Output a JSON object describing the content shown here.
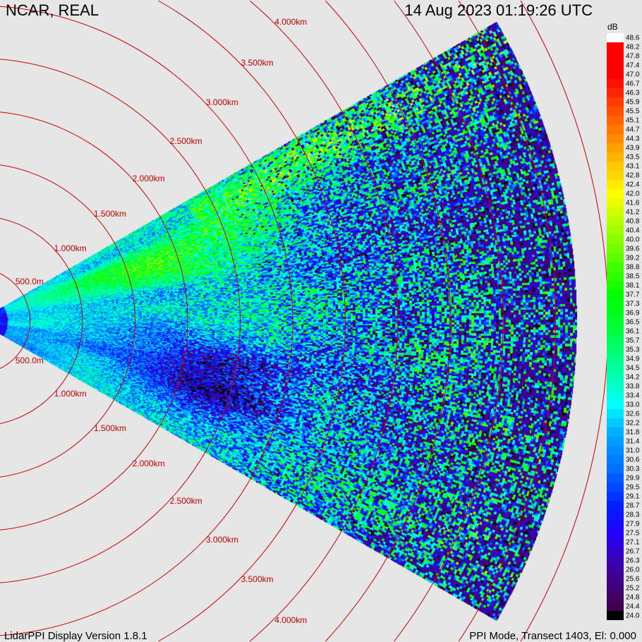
{
  "header": {
    "site": "NCAR, REAL",
    "datetime": "14 Aug 2023  01:19:26 UTC"
  },
  "footer": {
    "version": "LidarPPI Display Version 1.8.1",
    "mode": "PPI Mode, Transect 1403, El: 0.000"
  },
  "chart_data": {
    "type": "heatmap",
    "projection": "polar PPI sector",
    "sector_half_angle_deg": 30,
    "max_range_km": 5.7,
    "range_ring_spacing_km": 0.5,
    "range_ring_color": "#cc0000",
    "range_ring_labels": [
      "500.0m",
      "1.000km",
      "1.500km",
      "2.000km",
      "2.500km",
      "3.000km",
      "3.500km",
      "4.000km"
    ],
    "colorbar": {
      "unit": "dB",
      "labels": [
        "48.6",
        "48.2",
        "47.8",
        "47.4",
        "47.0",
        "46.7",
        "46.3",
        "45.9",
        "45.5",
        "45.1",
        "44.7",
        "44.3",
        "43.9",
        "43.5",
        "43.1",
        "42.8",
        "42.4",
        "42.0",
        "41.6",
        "41.2",
        "40.8",
        "40.4",
        "40.0",
        "39.6",
        "39.2",
        "38.8",
        "38.5",
        "38.1",
        "37.7",
        "37.3",
        "36.9",
        "36.5",
        "36.1",
        "35.7",
        "35.3",
        "34.9",
        "34.5",
        "34.2",
        "33.8",
        "33.4",
        "33.0",
        "32.6",
        "32.2",
        "31.8",
        "31.4",
        "31.0",
        "30.6",
        "30.3",
        "29.9",
        "29.5",
        "29.1",
        "28.7",
        "28.3",
        "27.9",
        "27.5",
        "27.1",
        "26.7",
        "26.3",
        "26.0",
        "25.6",
        "25.2",
        "24.8",
        "24.4",
        "24.0"
      ],
      "range": [
        24.0,
        48.6
      ],
      "color_anchors": [
        [
          24.0,
          "#000000"
        ],
        [
          24.4,
          "#400050"
        ],
        [
          26.0,
          "#4000a0"
        ],
        [
          27.5,
          "#2000ff"
        ],
        [
          28.7,
          "#0020ff"
        ],
        [
          30.3,
          "#0070ff"
        ],
        [
          31.8,
          "#00b0ff"
        ],
        [
          33.0,
          "#00ffff"
        ],
        [
          34.2,
          "#00ffb0"
        ],
        [
          36.1,
          "#00ff40"
        ],
        [
          37.7,
          "#00ff00"
        ],
        [
          40.4,
          "#a0ff00"
        ],
        [
          42.0,
          "#ffff00"
        ],
        [
          43.9,
          "#ffa000"
        ],
        [
          45.5,
          "#ff5000"
        ],
        [
          47.0,
          "#ff0000"
        ],
        [
          48.2,
          "#ff0000"
        ],
        [
          48.6,
          "#ffffff"
        ]
      ]
    }
  }
}
